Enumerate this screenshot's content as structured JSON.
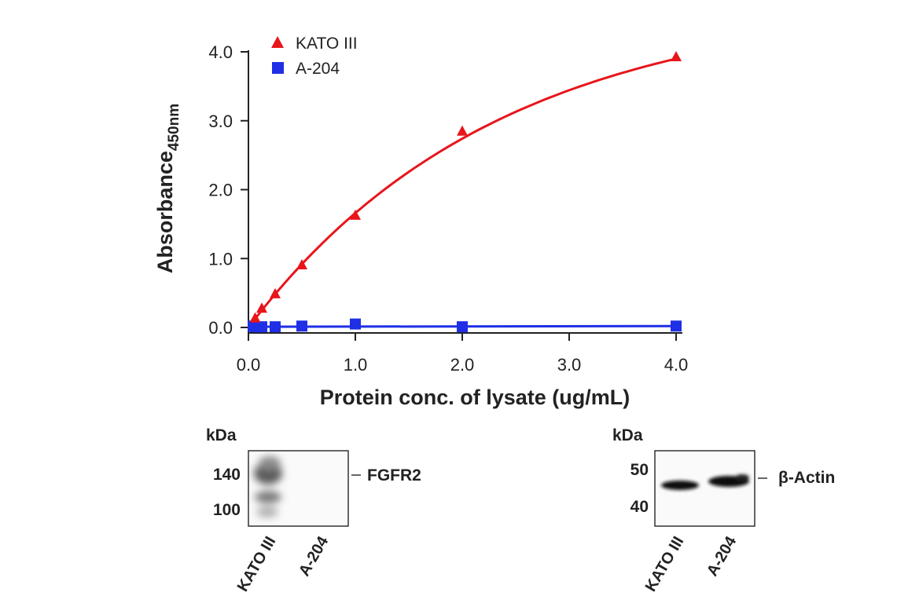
{
  "chart_data": {
    "type": "line",
    "xlabel": "Protein conc. of lysate (ug/mL)",
    "ylabel": "Absorbance",
    "ylabel_subscript": "450nm",
    "xlim": [
      0,
      4.0
    ],
    "ylim": [
      0,
      4.0
    ],
    "x_ticks": [
      "0.0",
      "1.0",
      "2.0",
      "3.0",
      "4.0"
    ],
    "y_ticks": [
      "0.0",
      "1.0",
      "2.0",
      "3.0",
      "4.0"
    ],
    "legend_position": "top-left",
    "series": [
      {
        "name": "KATO III",
        "marker": "triangle",
        "color": "#e8151b",
        "x": [
          0.0625,
          0.125,
          0.25,
          0.5,
          1.0,
          2.0,
          4.0
        ],
        "y": [
          0.13,
          0.27,
          0.48,
          0.9,
          1.62,
          2.84,
          3.92
        ]
      },
      {
        "name": "A-204",
        "marker": "square",
        "color": "#1f2fe6",
        "x": [
          0.0625,
          0.125,
          0.25,
          0.5,
          1.0,
          2.0,
          4.0
        ],
        "y": [
          0.01,
          0.01,
          0.01,
          0.02,
          0.05,
          0.01,
          0.02
        ]
      }
    ]
  },
  "blots": {
    "fgfr2": {
      "kda_label": "kDa",
      "markers": [
        "140",
        "100"
      ],
      "band_label": "FGFR2",
      "lanes": [
        "KATO III",
        "A-204"
      ]
    },
    "actin": {
      "kda_label": "kDa",
      "markers": [
        "50",
        "40"
      ],
      "band_label": "β-Actin",
      "lanes": [
        "KATO III",
        "A-204"
      ]
    }
  }
}
